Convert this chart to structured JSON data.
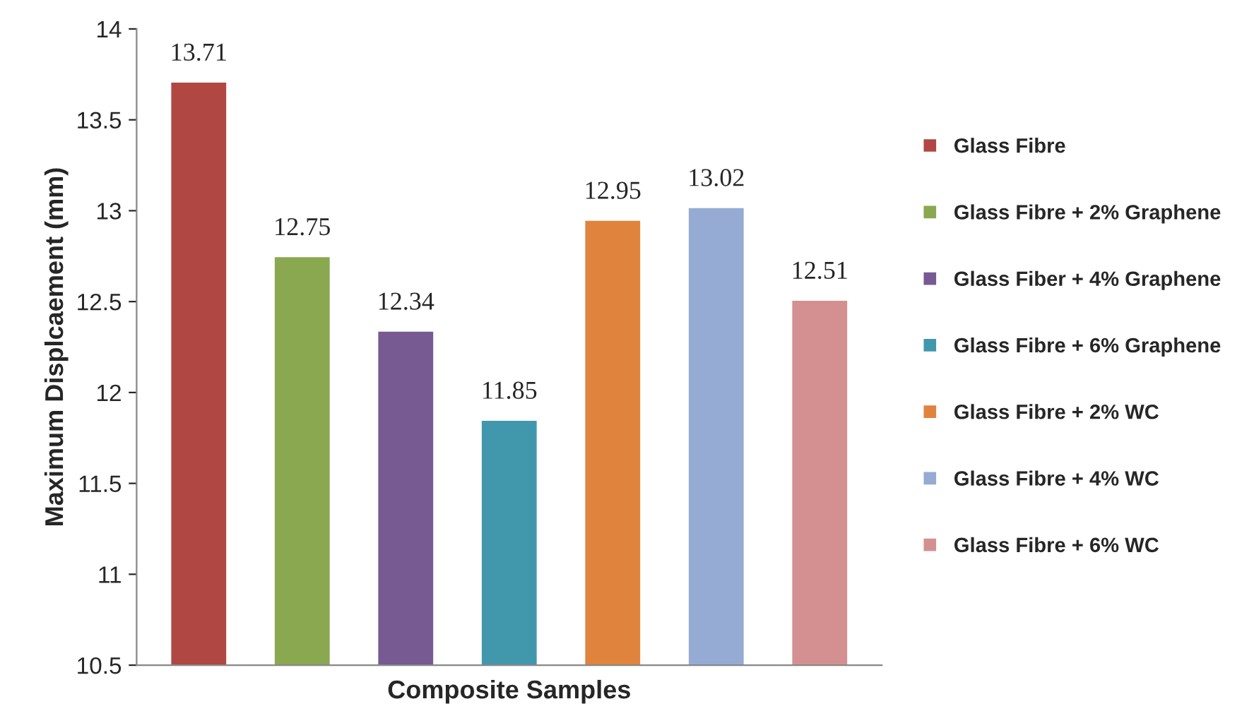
{
  "chart_data": {
    "type": "bar",
    "xlabel": "Composite Samples",
    "ylabel": "Maximum Displcaement (mm)",
    "categories": [
      null,
      null,
      null,
      null,
      null,
      null,
      null
    ],
    "series": [
      {
        "name": "Glass Fibre",
        "color": "#b04743",
        "values": [
          13.71,
          null,
          null,
          null,
          null,
          null,
          null
        ]
      },
      {
        "name": "Glass Fibre + 2% Graphene",
        "color": "#8aa84f",
        "values": [
          null,
          12.75,
          null,
          null,
          null,
          null,
          null
        ]
      },
      {
        "name": "Glass Fiber + 4% Graphene",
        "color": "#775a91",
        "values": [
          null,
          null,
          12.34,
          null,
          null,
          null,
          null
        ]
      },
      {
        "name": "Glass Fibre + 6% Graphene",
        "color": "#4198ad",
        "values": [
          null,
          null,
          null,
          11.85,
          null,
          null,
          null
        ]
      },
      {
        "name": "Glass Fibre + 2% WC",
        "color": "#e0843d",
        "values": [
          null,
          null,
          null,
          null,
          12.95,
          null,
          null
        ]
      },
      {
        "name": "Glass Fibre + 4% WC",
        "color": "#95abd3",
        "values": [
          null,
          null,
          null,
          null,
          null,
          13.02,
          null
        ]
      },
      {
        "name": "Glass Fibre + 6% WC",
        "color": "#d49090",
        "values": [
          null,
          null,
          null,
          null,
          null,
          null,
          12.51
        ]
      }
    ],
    "ylim": [
      10.5,
      14
    ],
    "yticks": [
      10.5,
      11,
      11.5,
      12,
      12.5,
      13,
      13.5,
      14
    ],
    "data_labels": true,
    "grid": false,
    "legend": "right"
  }
}
